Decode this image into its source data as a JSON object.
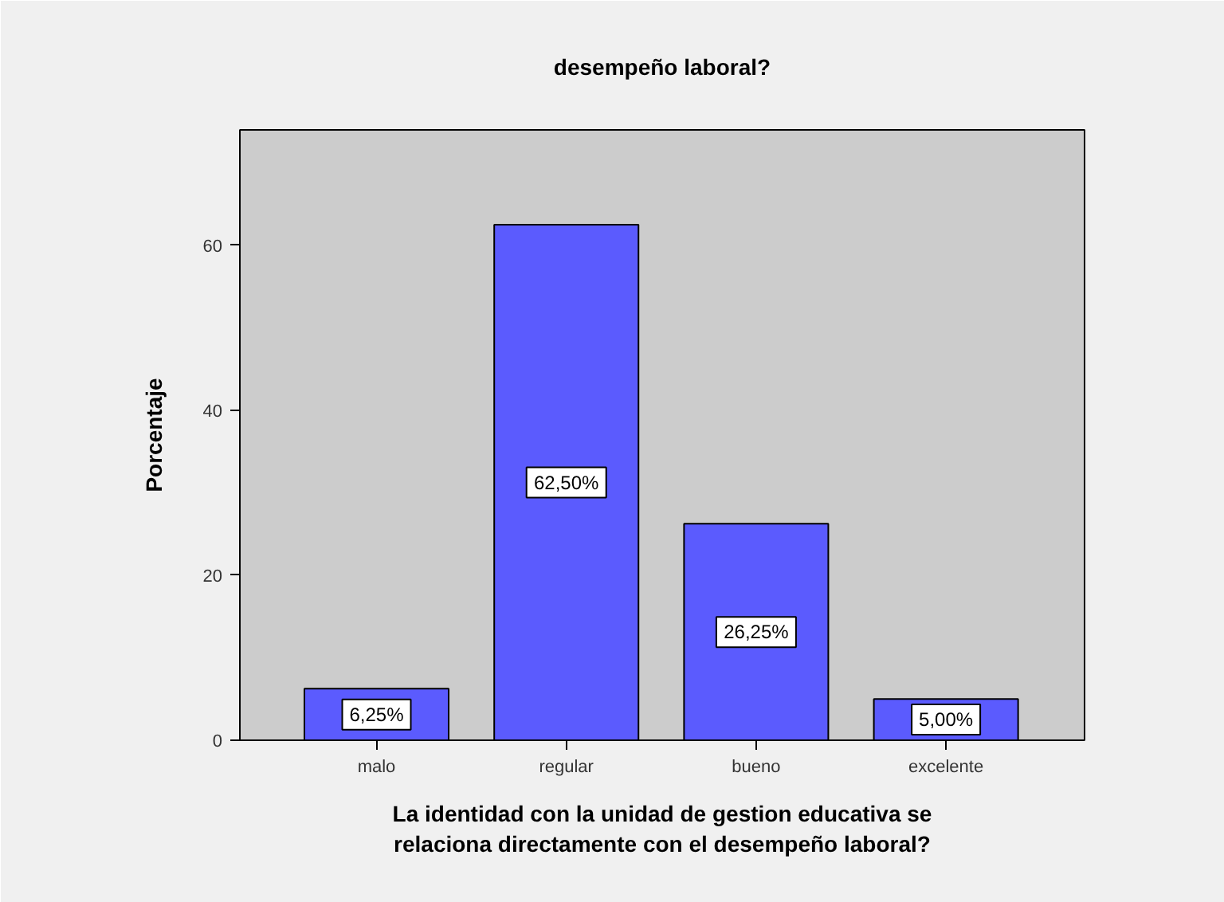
{
  "chart_data": {
    "type": "bar",
    "title": "desempeño laboral?",
    "xlabel": "La identidad con la unidad de gestion educativa se\nrelaciona directamente con el desempeño laboral?",
    "ylabel": "Porcentaje",
    "categories": [
      "malo",
      "regular",
      "bueno",
      "excelente"
    ],
    "values": [
      6.25,
      62.5,
      26.25,
      5.0
    ],
    "value_labels": [
      "6,25%",
      "62,50%",
      "26,25%",
      "5,00%"
    ],
    "color": "#5b5bfe",
    "ylim": [
      0,
      74
    ],
    "yticks": [
      0,
      20,
      40,
      60
    ]
  }
}
